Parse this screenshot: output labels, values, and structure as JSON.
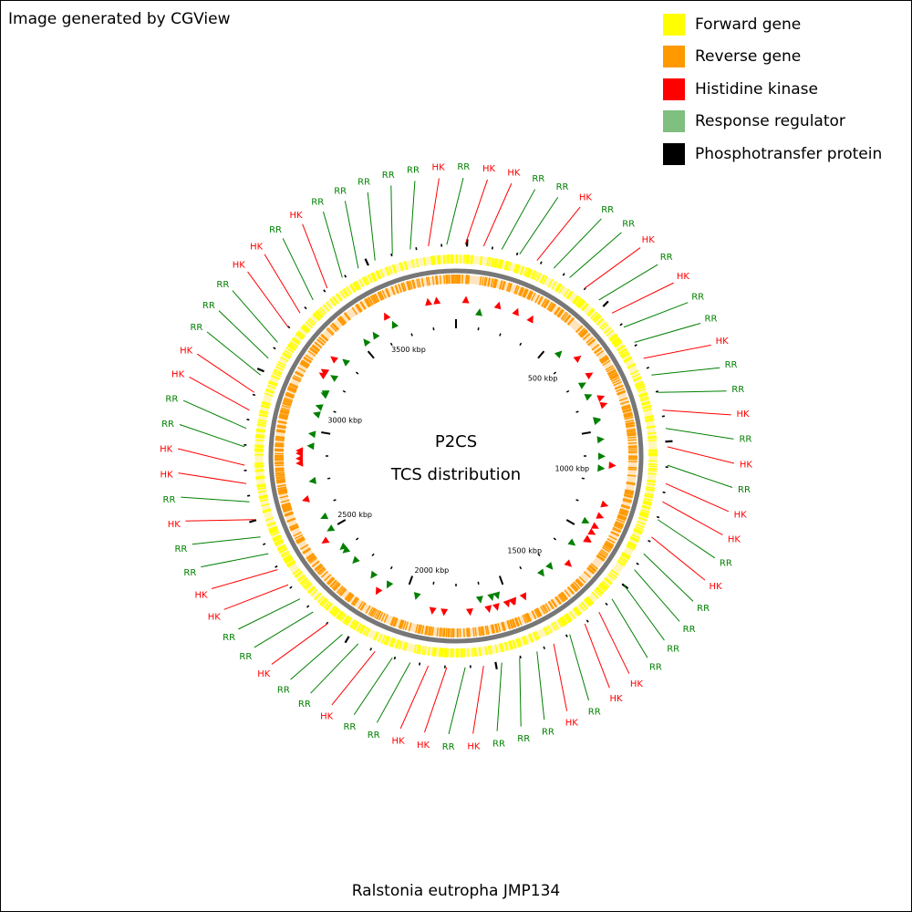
{
  "credit": "Image generated by CGView",
  "organism": "Ralstonia eutropha JMP134",
  "center": {
    "line1": "P2CS",
    "line2": "TCS distribution"
  },
  "legend": [
    {
      "label": "Forward gene",
      "color": "#ffff00"
    },
    {
      "label": "Reverse gene",
      "color": "#ff9900"
    },
    {
      "label": "Histidine kinase",
      "color": "#ff0000"
    },
    {
      "label": "Response regulator",
      "color": "#7fbf7f"
    },
    {
      "label": "Phosphotransfer protein",
      "color": "#000000"
    }
  ],
  "kbp_labels": [
    "500 kbp",
    "1000 kbp",
    "1500 kbp",
    "2000 kbp",
    "2500 kbp",
    "3000 kbp",
    "3500 kbp"
  ],
  "callout_colors": {
    "HK": "#ff0000",
    "RR": "#008000"
  },
  "callouts": [
    "HK",
    "RR",
    "RR",
    "RR",
    "RR",
    "RR",
    "HK",
    "RR",
    "HK",
    "HK",
    "RR",
    "RR",
    "HK",
    "RR",
    "RR",
    "HK",
    "RR",
    "HK",
    "RR",
    "RR",
    "HK",
    "RR",
    "RR",
    "HK",
    "RR",
    "HK",
    "RR",
    "HK",
    "HK",
    "RR",
    "HK",
    "RR",
    "RR",
    "RR",
    "RR",
    "HK",
    "HK",
    "RR",
    "HK",
    "RR",
    "RR",
    "RR",
    "HK",
    "RR",
    "HK",
    "HK",
    "RR",
    "RR",
    "HK",
    "RR",
    "RR",
    "HK",
    "RR",
    "RR",
    "HK",
    "HK",
    "RR",
    "RR",
    "HK",
    "RR",
    "HK",
    "HK",
    "RR",
    "RR",
    "HK",
    "HK",
    "RR",
    "RR",
    "RR",
    "HK",
    "HK",
    "RR"
  ]
}
